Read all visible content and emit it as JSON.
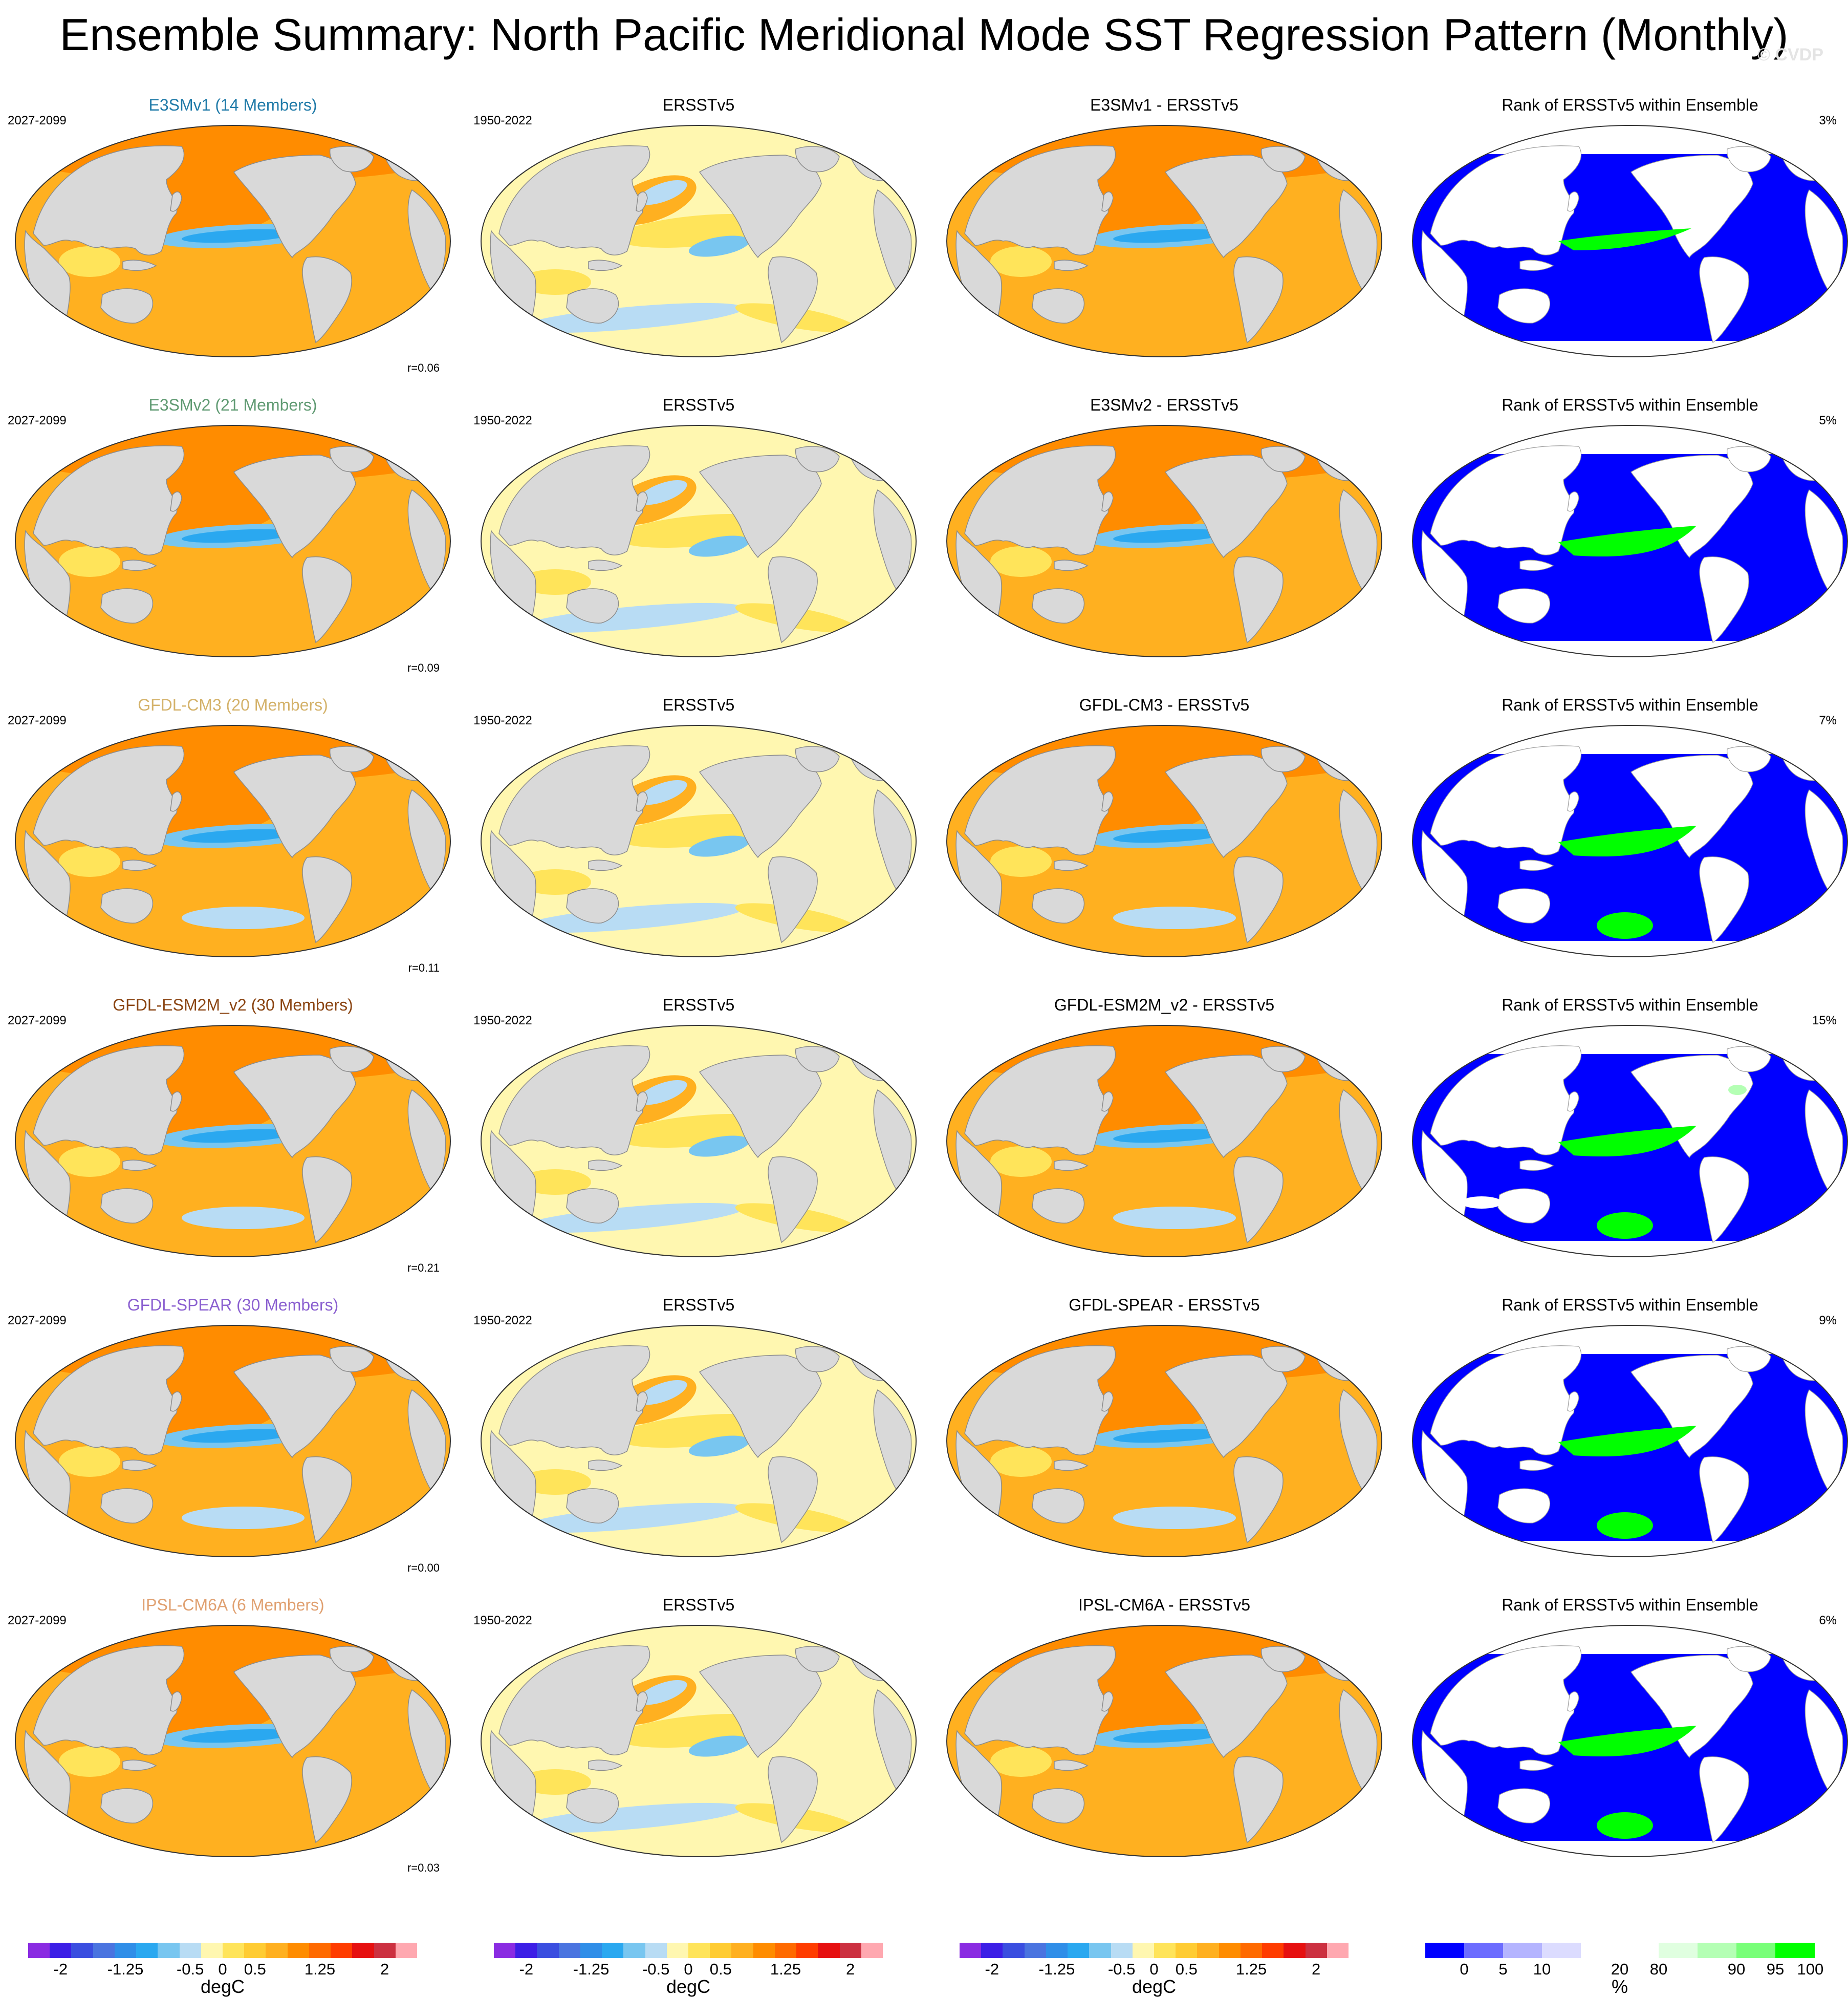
{
  "title": "Ensemble Summary: North Pacific Meridional Mode SST Regression Pattern (Monthly)",
  "watermark": "© CVDP",
  "columns": [
    "model",
    "observed",
    "difference",
    "rank"
  ],
  "rows": [
    {
      "model": "E3SMv1 (14 Members)",
      "model_color": "#1f7aa8",
      "model_period": "2027-2099",
      "corr": "r=0.06",
      "obs_title": "ERSSTv5",
      "obs_period": "1950-2022",
      "diff_title": "E3SMv1 - ERSSTv5",
      "rank_title": "Rank of ERSSTv5 within Ensemble",
      "rank_pct": "3%",
      "style": "v1"
    },
    {
      "model": "E3SMv2 (21 Members)",
      "model_color": "#5f9a72",
      "model_period": "2027-2099",
      "corr": "r=0.09",
      "obs_title": "ERSSTv5",
      "obs_period": "1950-2022",
      "diff_title": "E3SMv2 - ERSSTv5",
      "rank_title": "Rank of ERSSTv5 within Ensemble",
      "rank_pct": "5%",
      "style": "v2"
    },
    {
      "model": "GFDL-CM3 (20 Members)",
      "model_color": "#d4b26a",
      "model_period": "2027-2099",
      "corr": "r=0.11",
      "obs_title": "ERSSTv5",
      "obs_period": "1950-2022",
      "diff_title": "GFDL-CM3 - ERSSTv5",
      "rank_title": "Rank of ERSSTv5 within Ensemble",
      "rank_pct": "7%",
      "style": "cm3"
    },
    {
      "model": "GFDL-ESM2M_v2 (30 Members)",
      "model_color": "#8b4513",
      "model_period": "2027-2099",
      "corr": "r=0.21",
      "obs_title": "ERSSTv5",
      "obs_period": "1950-2022",
      "diff_title": "GFDL-ESM2M_v2 - ERSSTv5",
      "rank_title": "Rank of ERSSTv5 within Ensemble",
      "rank_pct": "15%",
      "style": "esm"
    },
    {
      "model": "GFDL-SPEAR (30 Members)",
      "model_color": "#8a5fd0",
      "model_period": "2027-2099",
      "corr": "r=0.00",
      "obs_title": "ERSSTv5",
      "obs_period": "1950-2022",
      "diff_title": "GFDL-SPEAR - ERSSTv5",
      "rank_title": "Rank of ERSSTv5 within Ensemble",
      "rank_pct": "9%",
      "style": "spear"
    },
    {
      "model": "IPSL-CM6A (6 Members)",
      "model_color": "#e0a070",
      "model_period": "2027-2099",
      "corr": "r=0.03",
      "obs_title": "ERSSTv5",
      "obs_period": "1950-2022",
      "diff_title": "IPSL-CM6A - ERSSTv5",
      "rank_title": "Rank of ERSSTv5 within Ensemble",
      "rank_pct": "6%",
      "style": "ipsl"
    }
  ],
  "colorbar_sst": {
    "colors": [
      "#8a2be2",
      "#3c1ee6",
      "#3a4ee0",
      "#4a74e0",
      "#2f8ee8",
      "#2aa8f0",
      "#78c6f0",
      "#b8dcf4",
      "#fff7b0",
      "#ffe45a",
      "#ffcc33",
      "#ffb020",
      "#ff8c00",
      "#ff6a00",
      "#ff3c00",
      "#e61010",
      "#cc3040",
      "#ffa8b0"
    ],
    "labels": [
      "-2",
      "-1.25",
      "-0.5",
      "0",
      "0.5",
      "1.25",
      "2"
    ],
    "unit": "degC"
  },
  "colorbar_rank": {
    "colors": [
      "#0000ff",
      "#6c6cff",
      "#b4b4ff",
      "#dcdcff",
      "#ffffff",
      "#ffffff",
      "#e0ffe0",
      "#b4ffb4",
      "#78ff78",
      "#00ff00"
    ],
    "labels": [
      "0",
      "5",
      "10",
      "20",
      "80",
      "90",
      "95",
      "100"
    ],
    "unit": "%"
  }
}
